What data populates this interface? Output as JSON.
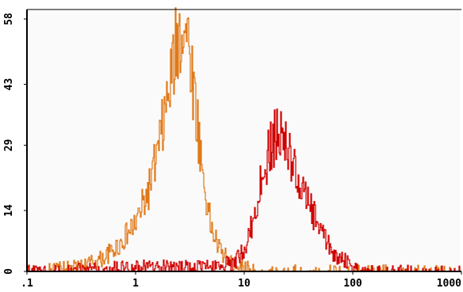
{
  "chart_data": {
    "type": "line",
    "title": "",
    "xlabel": "",
    "ylabel": "",
    "x_scale": "log",
    "xlim": [
      0.1,
      1000
    ],
    "ylim": [
      0,
      58
    ],
    "x_ticks": [
      ".1",
      "1",
      "10",
      "100",
      "1000"
    ],
    "y_ticks": [
      "0",
      "14",
      "29",
      "43",
      "58"
    ],
    "grid": false,
    "series": [
      {
        "color": "#e07818",
        "x": [
          0.1,
          0.3,
          0.5,
          0.7,
          1.0,
          1.3,
          1.6,
          2.0,
          2.4,
          2.8,
          3.2,
          3.7,
          4.3,
          5.0,
          6.0,
          7.5,
          10,
          15,
          30
        ],
        "y": [
          0,
          1,
          3,
          6,
          11,
          18,
          27,
          40,
          52,
          58,
          50,
          35,
          20,
          10,
          5,
          2,
          1,
          0,
          0
        ]
      },
      {
        "color": "#d00000",
        "x": [
          0.1,
          1,
          5,
          8,
          10,
          12,
          15,
          18,
          22,
          26,
          30,
          40,
          50,
          60,
          70,
          90,
          120,
          200
        ],
        "y": [
          0,
          1,
          1,
          2,
          5,
          11,
          22,
          30,
          31,
          28,
          22,
          15,
          10,
          6,
          4,
          2,
          0,
          0
        ]
      }
    ]
  }
}
